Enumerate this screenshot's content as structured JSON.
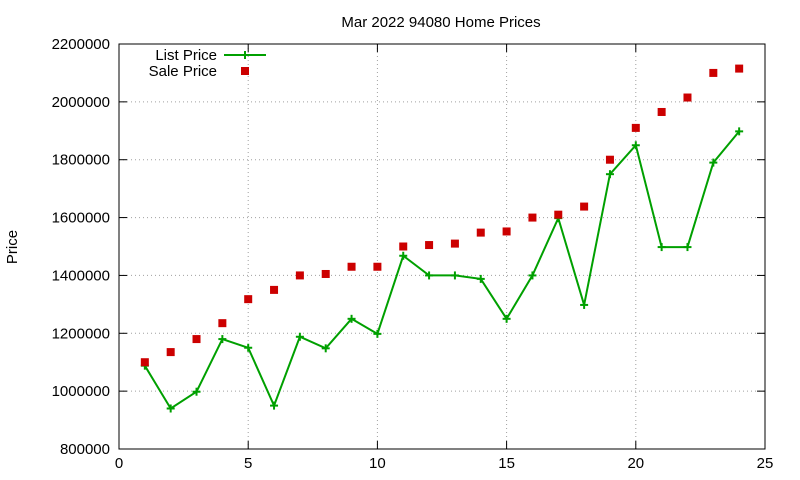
{
  "chart_data": {
    "type": "line",
    "title": "Mar 2022 94080 Home Prices",
    "xlabel": "",
    "ylabel": "Price",
    "xlim": [
      0,
      25
    ],
    "ylim": [
      800000,
      2200000
    ],
    "xticks": [
      0,
      5,
      10,
      15,
      20,
      25
    ],
    "yticks": [
      800000,
      1000000,
      1200000,
      1400000,
      1600000,
      1800000,
      2000000,
      2200000
    ],
    "xtick_labels": [
      "0",
      "5",
      "10",
      "15",
      "20",
      "25"
    ],
    "ytick_labels": [
      "800000",
      "1000000",
      "1200000",
      "1400000",
      "1600000",
      "1800000",
      "2000000",
      "2200000"
    ],
    "grid": true,
    "legend_position": "top-left",
    "x": [
      1,
      2,
      3,
      4,
      5,
      6,
      7,
      8,
      9,
      10,
      11,
      12,
      13,
      14,
      15,
      16,
      17,
      18,
      19,
      20,
      21,
      22,
      23,
      24
    ],
    "series": [
      {
        "name": "List Price",
        "style": "line+cross",
        "color": "#00a000",
        "values": [
          1088000,
          940000,
          998000,
          1180000,
          1150000,
          950000,
          1188000,
          1148000,
          1250000,
          1198000,
          1468000,
          1400000,
          1400000,
          1388000,
          1250000,
          1400000,
          1598000,
          1298000,
          1750000,
          1850000,
          1498000,
          1498000,
          1790000,
          1898000
        ]
      },
      {
        "name": "Sale Price",
        "style": "square",
        "color": "#cc0000",
        "values": [
          1100000,
          1135000,
          1180000,
          1235000,
          1318000,
          1350000,
          1400000,
          1405000,
          1430000,
          1430000,
          1500000,
          1505000,
          1510000,
          1548000,
          1552000,
          1600000,
          1610000,
          1638000,
          1800000,
          1910000,
          1965000,
          2015000,
          2100000,
          2115000
        ]
      }
    ]
  }
}
